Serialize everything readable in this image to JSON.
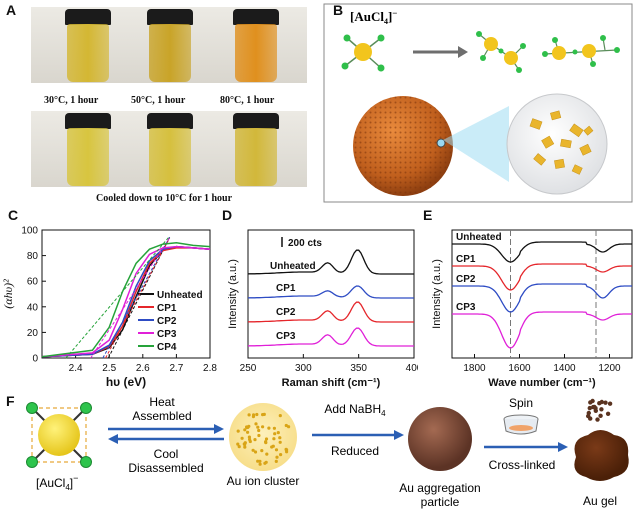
{
  "panels": {
    "A": "A",
    "B": "B",
    "C": "C",
    "D": "D",
    "E": "E",
    "F": "F"
  },
  "panelA": {
    "top_captions": [
      "30°C, 1 hour",
      "50°C, 1 hour",
      "80°C, 1 hour"
    ],
    "bottom_caption": "Cooled down to 10°C for 1 hour",
    "top_colors": [
      "#d4b733",
      "#c9a428",
      "#e0901e"
    ],
    "bottom_colors": [
      "#d8c53f",
      "#d6c03e",
      "#d2b83a"
    ]
  },
  "panelB": {
    "label_main": "[AuCl",
    "label_sub": "4",
    "label_sup": "−"
  },
  "chartC": {
    "type": "line",
    "ylabel": "(αhυ)²",
    "xlabel": "hυ (eV)",
    "xlim": [
      2.3,
      2.8
    ],
    "ylim": [
      0,
      100
    ],
    "xticks": [
      "2.4",
      "2.5",
      "2.6",
      "2.7",
      "2.8"
    ],
    "yticks": [
      "0",
      "20",
      "40",
      "60",
      "80",
      "100"
    ],
    "series": [
      {
        "name": "Unheated",
        "color": "#111111",
        "x": [
          2.3,
          2.45,
          2.5,
          2.54,
          2.58,
          2.62,
          2.66,
          2.7,
          2.75,
          2.8
        ],
        "y": [
          1,
          3,
          8,
          22,
          48,
          72,
          84,
          87,
          86,
          85
        ]
      },
      {
        "name": "CP1",
        "color": "#e5262b",
        "x": [
          2.3,
          2.45,
          2.5,
          2.54,
          2.58,
          2.62,
          2.66,
          2.7,
          2.75,
          2.8
        ],
        "y": [
          1,
          3,
          9,
          25,
          52,
          74,
          84,
          86,
          86,
          85
        ]
      },
      {
        "name": "CP2",
        "color": "#2e4cc4",
        "x": [
          2.3,
          2.45,
          2.5,
          2.54,
          2.58,
          2.62,
          2.66,
          2.7,
          2.75,
          2.8
        ],
        "y": [
          1,
          3,
          10,
          28,
          56,
          76,
          85,
          87,
          86,
          85
        ]
      },
      {
        "name": "CP3",
        "color": "#e020d8",
        "x": [
          2.3,
          2.45,
          2.5,
          2.54,
          2.58,
          2.62,
          2.66,
          2.7,
          2.75,
          2.8
        ],
        "y": [
          1,
          4,
          14,
          38,
          66,
          81,
          86,
          87,
          86,
          85
        ]
      },
      {
        "name": "CP4",
        "color": "#26a33a",
        "x": [
          2.3,
          2.45,
          2.5,
          2.54,
          2.58,
          2.62,
          2.66,
          2.7,
          2.75,
          2.8
        ],
        "y": [
          1,
          6,
          24,
          52,
          74,
          85,
          89,
          90,
          88,
          87
        ]
      }
    ]
  },
  "chartD": {
    "type": "line",
    "ylabel": "Intensity (a.u.)",
    "xlabel": "Raman shift (cm⁻¹)",
    "xlim": [
      250,
      400
    ],
    "xticks": [
      "250",
      "300",
      "350",
      "400"
    ],
    "scale_label": "200 cts",
    "series": [
      {
        "name": "Unheated",
        "color": "#111111"
      },
      {
        "name": "CP1",
        "color": "#2e4cc4"
      },
      {
        "name": "CP2",
        "color": "#e5262b"
      },
      {
        "name": "CP3",
        "color": "#e020d8"
      }
    ]
  },
  "chartE": {
    "type": "line",
    "ylabel": "Intensity (a.u.)",
    "xlabel": "Wave number (cm⁻¹)",
    "xlim": [
      1900,
      1100
    ],
    "xticks": [
      "1800",
      "1600",
      "1400",
      "1200"
    ],
    "series": [
      {
        "name": "Unheated",
        "color": "#111111"
      },
      {
        "name": "CP1",
        "color": "#e5262b"
      },
      {
        "name": "CP2",
        "color": "#2e4cc4"
      },
      {
        "name": "CP3",
        "color": "#e020d8"
      }
    ]
  },
  "panelF": {
    "heat": "Heat",
    "assembled": "Assembled",
    "cool": "Cool",
    "disassembled": "Disassembled",
    "add_nabh4_main": "Add NaBH",
    "add_nabh4_sub": "4",
    "reduced": "Reduced",
    "spin": "Spin",
    "crosslinked": "Cross-linked",
    "aucl4_main": "[AuCl",
    "aucl4_sub": "4",
    "aucl4_sup": "−",
    "cluster_label": "Au ion cluster",
    "aggregation_label_1": "Au aggregation",
    "aggregation_label_2": "particle",
    "gel_label": "Au gel"
  }
}
